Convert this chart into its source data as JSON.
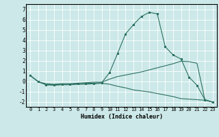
{
  "xlabel": "Humidex (Indice chaleur)",
  "xlim": [
    -0.5,
    23.5
  ],
  "ylim": [
    -2.5,
    7.5
  ],
  "yticks": [
    -2,
    -1,
    0,
    1,
    2,
    3,
    4,
    5,
    6,
    7
  ],
  "xticks": [
    0,
    1,
    2,
    3,
    4,
    5,
    6,
    7,
    8,
    9,
    10,
    11,
    12,
    13,
    14,
    15,
    16,
    17,
    18,
    19,
    20,
    21,
    22,
    23
  ],
  "bg_color": "#cce8e8",
  "line_color": "#2a7060",
  "grid_color": "#ffffff",
  "line1_x": [
    0,
    1,
    2,
    3,
    4,
    5,
    6,
    7,
    8,
    9,
    10,
    11,
    12,
    13,
    14,
    15,
    16,
    17,
    18,
    19,
    20,
    21,
    22,
    23
  ],
  "line1_y": [
    0.55,
    -0.05,
    -0.35,
    -0.35,
    -0.3,
    -0.3,
    -0.25,
    -0.2,
    -0.2,
    -0.15,
    0.85,
    2.7,
    4.6,
    5.5,
    6.3,
    6.7,
    6.55,
    3.35,
    2.55,
    2.15,
    0.4,
    -0.4,
    -1.8,
    -2.05
  ],
  "line2_x": [
    0,
    1,
    2,
    3,
    4,
    5,
    6,
    7,
    8,
    9,
    10,
    11,
    12,
    13,
    14,
    15,
    16,
    17,
    18,
    19,
    20,
    21,
    22,
    23
  ],
  "line2_y": [
    0.55,
    -0.05,
    -0.25,
    -0.3,
    -0.25,
    -0.25,
    -0.2,
    -0.15,
    -0.1,
    -0.1,
    0.2,
    0.45,
    0.6,
    0.75,
    0.9,
    1.1,
    1.3,
    1.5,
    1.7,
    1.95,
    1.9,
    1.75,
    -1.8,
    -2.05
  ],
  "line3_x": [
    0,
    1,
    2,
    3,
    4,
    5,
    6,
    7,
    8,
    9,
    10,
    11,
    12,
    13,
    14,
    15,
    16,
    17,
    18,
    19,
    20,
    21,
    22,
    23
  ],
  "line3_y": [
    0.55,
    -0.05,
    -0.35,
    -0.4,
    -0.35,
    -0.35,
    -0.3,
    -0.3,
    -0.25,
    -0.2,
    -0.3,
    -0.5,
    -0.65,
    -0.85,
    -0.95,
    -1.05,
    -1.2,
    -1.35,
    -1.5,
    -1.7,
    -1.75,
    -1.8,
    -1.85,
    -2.05
  ],
  "lw": 0.8,
  "ms": 2.0,
  "tick_fontsize": 5.0,
  "xlabel_fontsize": 6.0
}
